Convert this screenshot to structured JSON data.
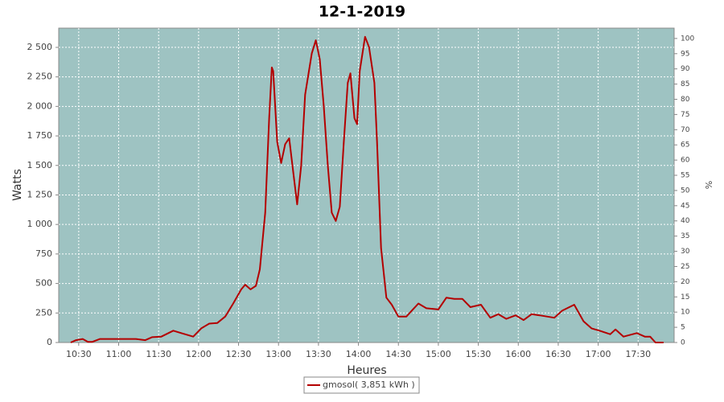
{
  "chart_data": {
    "type": "line",
    "title": "12-1-2019",
    "x_label": "Heures",
    "y_label": "Watts",
    "y2_label": "%",
    "xlim": [
      "10:15",
      "17:57"
    ],
    "xticks": [
      "10:30",
      "11:00",
      "11:30",
      "12:00",
      "12:30",
      "13:00",
      "13:30",
      "14:00",
      "14:30",
      "15:00",
      "15:30",
      "16:00",
      "16:30",
      "17:00",
      "17:30"
    ],
    "ylim": [
      0,
      2663
    ],
    "yticks": [
      0,
      250,
      500,
      750,
      {
        "value": 1000,
        "label": "1 000"
      },
      {
        "value": 1250,
        "label": "1 250"
      },
      {
        "value": 1500,
        "label": "1 500"
      },
      {
        "value": 1750,
        "label": "1 750"
      },
      {
        "value": 2000,
        "label": "2 000"
      },
      {
        "value": 2250,
        "label": "2 250"
      },
      {
        "value": 2500,
        "label": "2 500"
      }
    ],
    "y2lim": [
      0,
      103.4
    ],
    "y2ticks": [
      0,
      5,
      10,
      15,
      20,
      25,
      30,
      35,
      40,
      45,
      50,
      55,
      60,
      65,
      70,
      75,
      80,
      85,
      90,
      95,
      100
    ],
    "grid": true,
    "legend": "bottom",
    "x": [
      "10:24",
      "10:28",
      "10:33",
      "10:37",
      "10:40",
      "10:46",
      "10:55",
      "11:13",
      "11:20",
      "11:25",
      "11:32",
      "11:41",
      "11:47",
      "11:56",
      "12:02",
      "12:08",
      "12:14",
      "12:20",
      "12:26",
      "12:32",
      "12:35",
      "12:39",
      "12:43",
      "12:46",
      "12:50",
      "12:53",
      "12:55",
      "12:56",
      "12:59",
      "13:02",
      "13:05",
      "13:08",
      "13:11",
      "13:14",
      "13:17",
      "13:20",
      "13:25",
      "13:28",
      "13:31",
      "13:34",
      "13:37",
      "13:40",
      "13:43",
      "13:46",
      "13:49",
      "13:52",
      "13:54",
      "13:57",
      "13:59",
      "14:01",
      "14:05",
      "14:08",
      "14:12",
      "14:14",
      "14:17",
      "14:21",
      "14:25",
      "14:30",
      "14:36",
      "14:45",
      "14:51",
      "15:00",
      "15:06",
      "15:12",
      "15:18",
      "15:24",
      "15:32",
      "15:39",
      "15:45",
      "15:51",
      "15:58",
      "16:04",
      "16:10",
      "16:16",
      "16:27",
      "16:33",
      "16:42",
      "16:49",
      "16:55",
      "17:01",
      "17:09",
      "17:13",
      "17:19",
      "17:29",
      "17:35",
      "17:39",
      "17:43",
      "17:49"
    ],
    "series": [
      {
        "name": "gmosol( 3,851 kWh )",
        "color": "#b40000",
        "values": [
          0,
          20,
          30,
          5,
          5,
          30,
          30,
          30,
          20,
          45,
          50,
          100,
          80,
          50,
          120,
          160,
          165,
          220,
          330,
          450,
          490,
          450,
          480,
          620,
          1100,
          1900,
          2330,
          2300,
          1700,
          1520,
          1680,
          1730,
          1450,
          1170,
          1500,
          2100,
          2450,
          2560,
          2400,
          2000,
          1500,
          1100,
          1030,
          1150,
          1700,
          2200,
          2280,
          1900,
          1850,
          2300,
          2590,
          2500,
          2200,
          1700,
          800,
          380,
          320,
          220,
          220,
          330,
          290,
          280,
          380,
          370,
          370,
          300,
          320,
          210,
          240,
          200,
          230,
          190,
          240,
          230,
          210,
          270,
          320,
          180,
          120,
          100,
          70,
          110,
          50,
          80,
          50,
          50,
          0,
          0
        ]
      }
    ]
  }
}
